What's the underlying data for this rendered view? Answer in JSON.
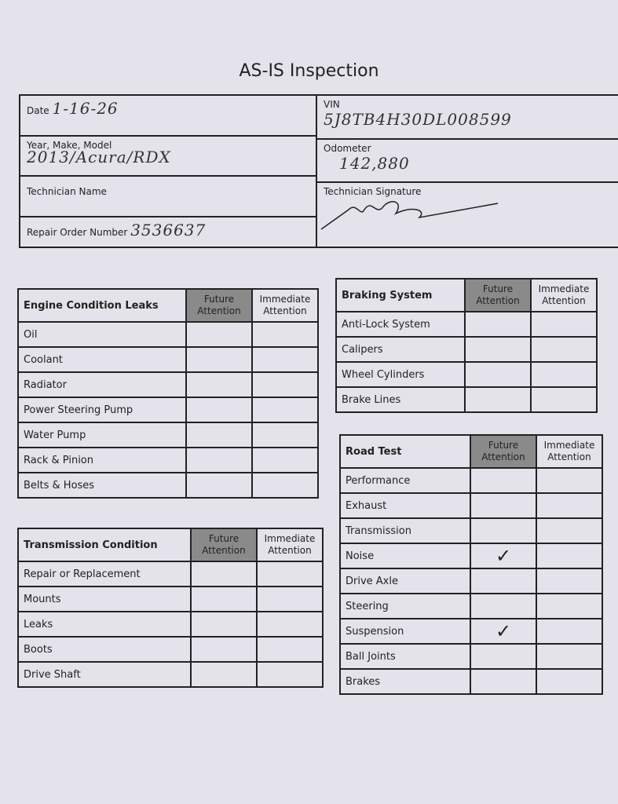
{
  "title": "AS-IS Inspection",
  "header": {
    "date_label": "Date",
    "date_value": "1-16-26",
    "ymm_label": "Year, Make, Model",
    "ymm_value": "2013/Acura/RDX",
    "tech_name_label": "Technician Name",
    "ro_label": "Repair Order Number",
    "ro_value": "3536637",
    "vin_label": "VIN",
    "vin_value": "5J8TB4H30DL008599",
    "odometer_label": "Odometer",
    "odometer_value": "142,880",
    "signature_label": "Technician Signature"
  },
  "columns": {
    "future": "Future Attention",
    "immediate": "Immediate Attention"
  },
  "engine": {
    "title": "Engine Condition Leaks",
    "rows": [
      {
        "label": "Oil"
      },
      {
        "label": "Coolant"
      },
      {
        "label": "Radiator"
      },
      {
        "label": "Power Steering Pump"
      },
      {
        "label": "Water Pump"
      },
      {
        "label": "Rack & Pinion"
      },
      {
        "label": "Belts & Hoses"
      }
    ]
  },
  "transmission": {
    "title": "Transmission Condition",
    "rows": [
      {
        "label": "Repair or Replacement"
      },
      {
        "label": "Mounts"
      },
      {
        "label": "Leaks"
      },
      {
        "label": "Boots"
      },
      {
        "label": "Drive Shaft"
      }
    ]
  },
  "braking": {
    "title": "Braking System",
    "rows": [
      {
        "label": "Anti-Lock System"
      },
      {
        "label": "Calipers"
      },
      {
        "label": "Wheel Cylinders"
      },
      {
        "label": "Brake Lines"
      }
    ]
  },
  "road": {
    "title": "Road Test",
    "rows": [
      {
        "label": "Performance"
      },
      {
        "label": "Exhaust"
      },
      {
        "label": "Transmission"
      },
      {
        "label": "Noise",
        "future": "✓"
      },
      {
        "label": "Drive Axle"
      },
      {
        "label": "Steering"
      },
      {
        "label": "Suspension",
        "future": "✓"
      },
      {
        "label": "Ball Joints"
      },
      {
        "label": "Brakes"
      }
    ]
  }
}
